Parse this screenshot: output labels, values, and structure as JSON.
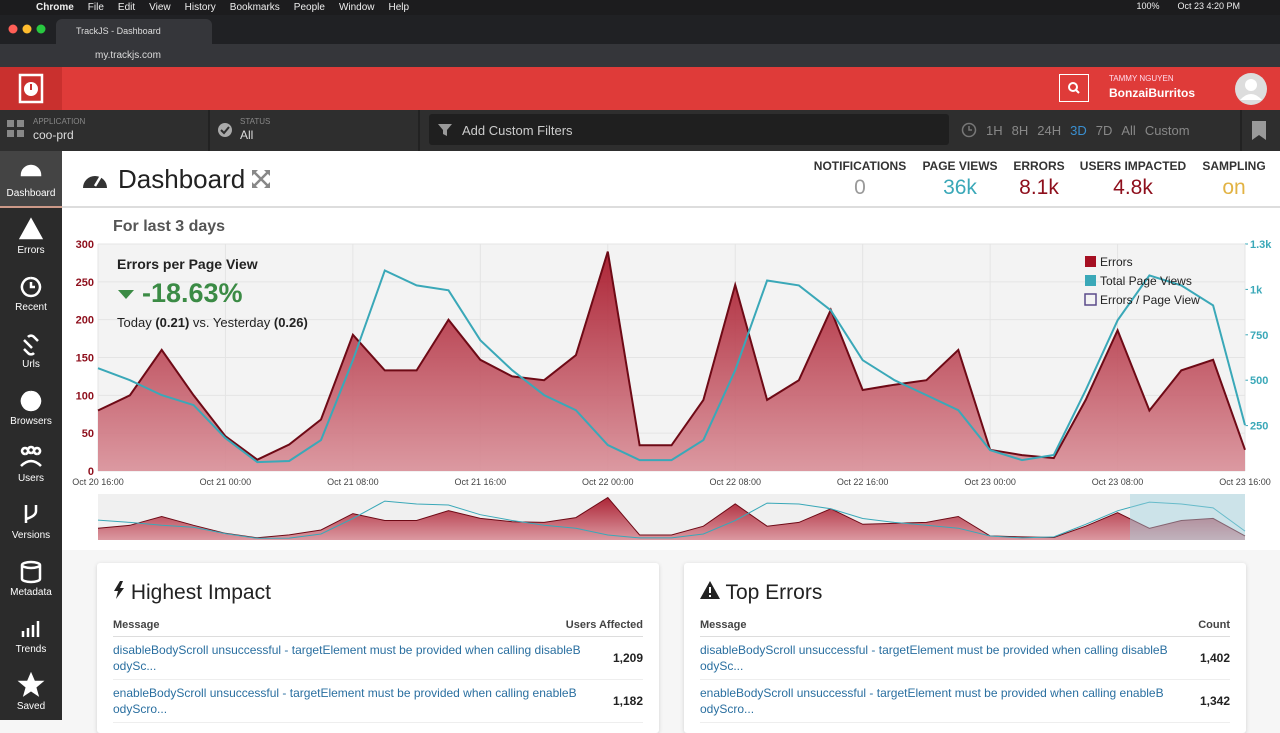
{
  "browser": {
    "menu": [
      "Chrome",
      "File",
      "Edit",
      "View",
      "History",
      "Bookmarks",
      "People",
      "Window",
      "Help"
    ],
    "battery": "100%",
    "clock": "Oct 23  4:20 PM",
    "tab": "TrackJS - Dashboard",
    "url": "my.trackjs.com"
  },
  "header": {
    "user": "TAMMY NGUYEN",
    "org": "BonzaiBurritos"
  },
  "filters": {
    "application_label": "APPLICATION",
    "application": "coo-prd",
    "status_label": "STATUS",
    "status": "All",
    "custom": "Add Custom Filters",
    "ranges": [
      "1H",
      "8H",
      "24H",
      "3D",
      "7D",
      "All",
      "Custom"
    ],
    "active_range": 3
  },
  "nav": [
    "Dashboard",
    "Errors",
    "Recent",
    "Urls",
    "Browsers",
    "Users",
    "Versions",
    "Metadata",
    "Trends",
    "Saved"
  ],
  "title": "Dashboard",
  "stats": [
    {
      "label": "NOTIFICATIONS",
      "value": "0",
      "color": "#9a9a9a"
    },
    {
      "label": "PAGE VIEWS",
      "value": "36k",
      "color": "#3aa8b8"
    },
    {
      "label": "ERRORS",
      "value": "8.1k",
      "color": "#8e0f1c"
    },
    {
      "label": "USERS IMPACTED",
      "value": "4.8k",
      "color": "#8e0f1c"
    },
    {
      "label": "SAMPLING",
      "value": "on",
      "color": "#e2b344"
    }
  ],
  "period": "For last 3 days",
  "epv": {
    "title": "Errors per Page View",
    "change": "-18.63%",
    "today_label": "Today",
    "today": "(0.21)",
    "vs": "vs. Yesterday",
    "yesterday": "(0.26)"
  },
  "chart_data": {
    "type": "area",
    "categories": [
      "Oct 20 16:00",
      null,
      null,
      null,
      "Oct 21 00:00",
      null,
      null,
      null,
      "Oct 21 08:00",
      null,
      null,
      null,
      "Oct 21 16:00",
      null,
      null,
      null,
      "Oct 22 00:00",
      null,
      null,
      null,
      "Oct 22 08:00",
      null,
      null,
      null,
      "Oct 22 16:00",
      null,
      null,
      null,
      "Oct 23 00:00",
      null,
      null,
      null,
      "Oct 23 08:00",
      null,
      null,
      null,
      "Oct 23 16:00"
    ],
    "series": [
      {
        "name": "Errors",
        "color": "#a50f22",
        "values": [
          80,
          100,
          160,
          100,
          46,
          15,
          35,
          68,
          180,
          133,
          133,
          200,
          147,
          125,
          120,
          153,
          290,
          34,
          34,
          94,
          246,
          94,
          120,
          213,
          107,
          114,
          120,
          160,
          28,
          21,
          17,
          94,
          186,
          80,
          133,
          147,
          28
        ]
      },
      {
        "name": "Total Page Views",
        "color": "#3aa8b8",
        "axis": "y2",
        "values": [
          566,
          500,
          418,
          363,
          181,
          49,
          55,
          170,
          610,
          1104,
          1022,
          995,
          720,
          555,
          418,
          335,
          143,
          60,
          60,
          170,
          555,
          1049,
          1022,
          885,
          610,
          500,
          418,
          335,
          115,
          60,
          88,
          445,
          830,
          1077,
          1022,
          912,
          253
        ]
      }
    ],
    "hidden_series": {
      "name": "Errors / Page View",
      "color": "#5b4b8a"
    },
    "ylim": [
      0,
      300
    ],
    "yticks": [
      0,
      50,
      100,
      150,
      200,
      250,
      300
    ],
    "y2lim": [
      0,
      1250
    ],
    "y2ticks": [
      250,
      500,
      750,
      {
        "value": 1000,
        "label": "1k"
      },
      {
        "value": 1250,
        "label": "1.3k"
      }
    ],
    "grid": true,
    "legend": "top-right"
  },
  "highest_impact": {
    "title": "Highest Impact",
    "columns": [
      "Message",
      "Users Affected"
    ],
    "rows": [
      [
        "disableBodyScroll unsuccessful - targetElement must be provided when calling disableBodySc...",
        "1,209"
      ],
      [
        "enableBodyScroll unsuccessful - targetElement must be provided when calling enableBodyScro...",
        "1,182"
      ]
    ]
  },
  "top_errors": {
    "title": "Top Errors",
    "columns": [
      "Message",
      "Count"
    ],
    "rows": [
      [
        "disableBodyScroll unsuccessful - targetElement must be provided when calling disableBodySc...",
        "1,402"
      ],
      [
        "enableBodyScroll unsuccessful - targetElement must be provided when calling enableBodyScro...",
        "1,342"
      ]
    ]
  }
}
